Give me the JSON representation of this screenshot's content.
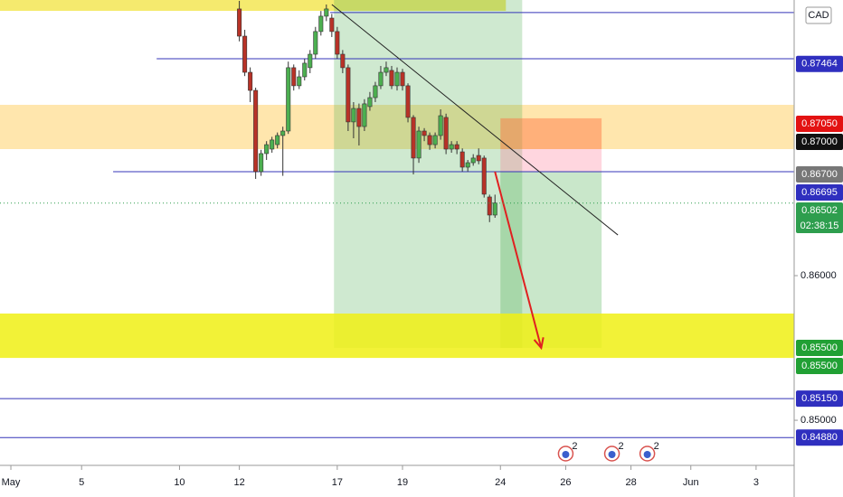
{
  "chart_data": {
    "type": "candlestick",
    "currency": "CAD",
    "xlim": [
      0,
      146
    ],
    "ylim": [
      0.84688,
      0.87906
    ],
    "xticks": [
      {
        "value": 2,
        "label": "May"
      },
      {
        "value": 15,
        "label": "5"
      },
      {
        "value": 33,
        "label": "10"
      },
      {
        "value": 44,
        "label": "12"
      },
      {
        "value": 62,
        "label": "17"
      },
      {
        "value": 74,
        "label": "19"
      },
      {
        "value": 92,
        "label": "24"
      },
      {
        "value": 104,
        "label": "26"
      },
      {
        "value": 116,
        "label": "28"
      },
      {
        "value": 127,
        "label": "Jun"
      },
      {
        "value": 139,
        "label": "3"
      }
    ],
    "yticks": [
      {
        "value": 0.86,
        "label": "0.86000"
      },
      {
        "value": 0.85,
        "label": "0.85000"
      }
    ],
    "up_color": "#4caf50",
    "down_color": "#b83227",
    "x": [
      44,
      45,
      46,
      47,
      48,
      49,
      50,
      51,
      52,
      53,
      54,
      55,
      56,
      57,
      58,
      59,
      60,
      61,
      62,
      63,
      64,
      65,
      66,
      67,
      68,
      69,
      70,
      71,
      72,
      73,
      74,
      75,
      76,
      77,
      78,
      79,
      80,
      81,
      82,
      83,
      84,
      85,
      86,
      87,
      88,
      89,
      90,
      91
    ],
    "open": [
      0.87844,
      0.87656,
      0.87406,
      0.87281,
      0.86719,
      0.86844,
      0.86875,
      0.86906,
      0.86969,
      0.87,
      0.87438,
      0.87313,
      0.87375,
      0.87438,
      0.87531,
      0.87688,
      0.87794,
      0.87781,
      0.87688,
      0.87531,
      0.87438,
      0.87063,
      0.87156,
      0.87031,
      0.87169,
      0.87231,
      0.87313,
      0.87406,
      0.87419,
      0.87313,
      0.87406,
      0.87313,
      0.87094,
      0.86813,
      0.87,
      0.86969,
      0.86906,
      0.86969,
      0.87094,
      0.86875,
      0.86906,
      0.86856,
      0.8675,
      0.86781,
      0.86831,
      0.86813,
      0.86544,
      0.86419
    ],
    "high": [
      0.879,
      0.877,
      0.8744,
      0.873,
      0.8687,
      0.8693,
      0.8696,
      0.8699,
      0.8703,
      0.8748,
      0.8746,
      0.8742,
      0.875,
      0.8756,
      0.8772,
      0.8783,
      0.87875,
      0.8781,
      0.8772,
      0.8756,
      0.8746,
      0.872,
      0.8719,
      0.8722,
      0.8727,
      0.8734,
      0.8745,
      0.8748,
      0.8745,
      0.8744,
      0.8743,
      0.8733,
      0.8711,
      0.8703,
      0.8702,
      0.8699,
      0.8699,
      0.8715,
      0.8712,
      0.8693,
      0.8693,
      0.8688,
      0.868,
      0.8684,
      0.8688,
      0.8683,
      0.8656,
      0.8656
    ],
    "low": [
      0.8762,
      0.8738,
      0.872,
      0.86669,
      0.8669,
      0.868,
      0.8685,
      0.8688,
      0.8669,
      0.8698,
      0.8728,
      0.8729,
      0.8735,
      0.874,
      0.875,
      0.8766,
      0.8776,
      0.8765,
      0.875,
      0.874,
      0.87,
      0.8695,
      0.869,
      0.87,
      0.8714,
      0.872,
      0.8729,
      0.8738,
      0.8729,
      0.8728,
      0.8728,
      0.8706,
      0.867,
      0.8678,
      0.8693,
      0.8687,
      0.8688,
      0.8694,
      0.8684,
      0.8685,
      0.8684,
      0.8672,
      0.8672,
      0.8676,
      0.8677,
      0.8654,
      0.8637,
      0.864
    ],
    "close": [
      0.87656,
      0.87406,
      0.87281,
      0.86719,
      0.86844,
      0.86906,
      0.86938,
      0.86969,
      0.87,
      0.87438,
      0.87313,
      0.87375,
      0.87469,
      0.87531,
      0.87688,
      0.87794,
      0.87844,
      0.87688,
      0.87531,
      0.87438,
      0.87063,
      0.87156,
      0.87031,
      0.87188,
      0.87231,
      0.87313,
      0.87406,
      0.87438,
      0.87313,
      0.87406,
      0.87313,
      0.87094,
      0.86813,
      0.87,
      0.86969,
      0.86906,
      0.86969,
      0.87106,
      0.86875,
      0.86906,
      0.86875,
      0.8675,
      0.86781,
      0.86813,
      0.86794,
      0.86563,
      0.86419,
      0.86502
    ],
    "zones": [
      {
        "x": [
          0,
          93
        ],
        "price": [
          0.87906,
          0.87831
        ],
        "color": "#f5ea6e"
      },
      {
        "x": [
          0,
          146
        ],
        "price": [
          0.87181,
          0.86875
        ],
        "color": "rgba(255,190,40,0.38)"
      },
      {
        "x": [
          61.4,
          96
        ],
        "price": [
          0.87906,
          0.855
        ],
        "color": "rgba(76,175,80,0.27)"
      },
      {
        "x": [
          92,
          110.6
        ],
        "price": [
          0.87088,
          0.86875
        ],
        "color": "rgba(255,110,60,0.45)"
      },
      {
        "x": [
          92,
          110.6
        ],
        "price": [
          0.86875,
          0.86719
        ],
        "color": "rgba(255,120,150,0.3)"
      },
      {
        "x": [
          92,
          110.6
        ],
        "price": [
          0.86719,
          0.855
        ],
        "color": "rgba(76,175,80,0.3)"
      },
      {
        "x": [
          0,
          146
        ],
        "price": [
          0.85738,
          0.85431
        ],
        "color": "rgba(240,240,20,0.85)"
      }
    ],
    "hlines": [
      {
        "value": 0.87819,
        "start": 60.7,
        "color": "#3535b8"
      },
      {
        "value": 0.875,
        "start": 28.8,
        "color": "#3535b8"
      },
      {
        "value": 0.86719,
        "start": 20.8,
        "color": "#3535b8"
      },
      {
        "value": 0.8515,
        "start": 0,
        "color": "#3535b8"
      },
      {
        "value": 0.8488,
        "start": 0,
        "color": "#3535b8"
      }
    ],
    "trendline": {
      "x": [
        61,
        113.6
      ],
      "price": [
        0.87875,
        0.86281
      ],
      "color": "#222"
    },
    "arrow": {
      "x": [
        91,
        99.5
      ],
      "price": [
        0.86719,
        0.855
      ],
      "color": "#e02020"
    },
    "price_labels": [
      {
        "value": 0.87464,
        "label": "0.87464",
        "color": "#2f2fbf"
      },
      {
        "value": 0.8705,
        "label": "0.87050",
        "color": "#e31212"
      },
      {
        "value": 0.87,
        "label": "0.87000",
        "color": "#111111"
      },
      {
        "value": 0.867,
        "label": "0.86700",
        "color": "#777777"
      },
      {
        "value": 0.86695,
        "label": "0.86695",
        "color": "#2f2fbf"
      },
      {
        "value": 0.86502,
        "label": "0.86502",
        "color": "#2e9e4e",
        "timer": "02:38:15"
      },
      {
        "value": 0.855,
        "label": "0.85500",
        "color": "#21a034"
      },
      {
        "value": 0.855,
        "label": "0.85500",
        "color": "#21a034"
      },
      {
        "value": 0.8515,
        "label": "0.85150",
        "color": "#2f2fbf"
      },
      {
        "value": 0.8488,
        "label": "0.84880",
        "color": "#2f2fbf"
      }
    ],
    "events": [
      {
        "x": 104,
        "count": 2
      },
      {
        "x": 112.5,
        "count": 2
      },
      {
        "x": 119,
        "count": 2
      }
    ]
  }
}
